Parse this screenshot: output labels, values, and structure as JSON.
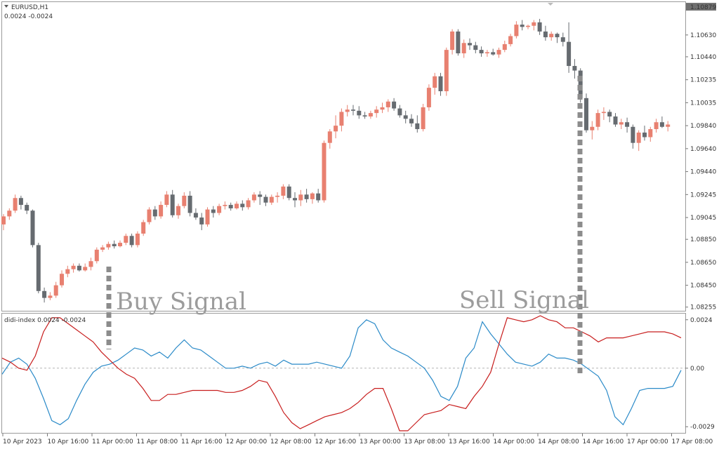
{
  "header": {
    "symbol_label": "EURUSD,H1",
    "indicator_values": "0.0024   -0.0024"
  },
  "indicator": {
    "label": "didi-index 0.0024 -0.0024"
  },
  "signals": {
    "buy": "Buy Signal",
    "sell": "Sell Signal"
  },
  "colors": {
    "bull": "#e88070",
    "bear": "#666b70",
    "fast_line": "#2a8ac8",
    "slow_line": "#c81e1e",
    "signal_marker": "#8c8c8c",
    "current_price_bg": "#707070"
  },
  "chart_data": [
    {
      "type": "candlestick",
      "symbol": "EURUSD",
      "timeframe": "H1",
      "current_price": "1.10879",
      "ylim": [
        1.0824,
        1.1091
      ],
      "y_ticks": [
        {
          "value": 1.10879,
          "label": "1.10879"
        },
        {
          "value": 1.1063,
          "label": "1.10630"
        },
        {
          "value": 1.1044,
          "label": "1.10440"
        },
        {
          "value": 1.1024,
          "label": "1.10235"
        },
        {
          "value": 1.1004,
          "label": "1.10035"
        },
        {
          "value": 1.0984,
          "label": "1.09840"
        },
        {
          "value": 1.0964,
          "label": "1.09640"
        },
        {
          "value": 1.0944,
          "label": "1.09440"
        },
        {
          "value": 1.0924,
          "label": "1.09245"
        },
        {
          "value": 1.0904,
          "label": "1.09045"
        },
        {
          "value": 1.0885,
          "label": "1.08850"
        },
        {
          "value": 1.0865,
          "label": "1.08650"
        },
        {
          "value": 1.0845,
          "label": "1.08450"
        },
        {
          "value": 1.0826,
          "label": "1.08255"
        }
      ],
      "x_labels": [
        "10 Apr 2023",
        "10 Apr 16:00",
        "11 Apr 00:00",
        "11 Apr 08:00",
        "11 Apr 16:00",
        "12 Apr 00:00",
        "12 Apr 08:00",
        "12 Apr 16:00",
        "13 Apr 00:00",
        "13 Apr 08:00",
        "13 Apr 16:00",
        "14 Apr 00:00",
        "14 Apr 08:00",
        "14 Apr 16:00",
        "17 Apr 00:00",
        "17 Apr 08:00"
      ],
      "candles": [
        [
          1.0898,
          1.0907,
          1.0893,
          1.0905
        ],
        [
          1.0905,
          1.0912,
          1.0902,
          1.091
        ],
        [
          1.091,
          1.0924,
          1.0908,
          1.0921
        ],
        [
          1.0921,
          1.0923,
          1.0911,
          1.0915
        ],
        [
          1.0915,
          1.0917,
          1.0907,
          1.091
        ],
        [
          1.091,
          1.0911,
          1.0878,
          1.088
        ],
        [
          1.088,
          1.0882,
          1.0838,
          1.084
        ],
        [
          1.084,
          1.0843,
          1.083,
          1.0834
        ],
        [
          1.0834,
          1.0839,
          1.0832,
          1.0836
        ],
        [
          1.0836,
          1.0848,
          1.0834,
          1.0845
        ],
        [
          1.0845,
          1.0858,
          1.0843,
          1.0855
        ],
        [
          1.0855,
          1.0862,
          1.0852,
          1.0859
        ],
        [
          1.0859,
          1.0864,
          1.0856,
          1.0862
        ],
        [
          1.0862,
          1.0864,
          1.0857,
          1.0858
        ],
        [
          1.0858,
          1.0864,
          1.0857,
          1.0861
        ],
        [
          1.0861,
          1.0869,
          1.0858,
          1.0866
        ],
        [
          1.0866,
          1.0878,
          1.0864,
          1.0876
        ],
        [
          1.0876,
          1.088,
          1.0874,
          1.0878
        ],
        [
          1.0878,
          1.0883,
          1.0876,
          1.0881
        ],
        [
          1.0881,
          1.0884,
          1.0877,
          1.0879
        ],
        [
          1.0879,
          1.0884,
          1.0878,
          1.0882
        ],
        [
          1.0882,
          1.089,
          1.088,
          1.0888
        ],
        [
          1.0888,
          1.089,
          1.0878,
          1.088
        ],
        [
          1.088,
          1.0892,
          1.0878,
          1.089
        ],
        [
          1.089,
          1.0902,
          1.0888,
          1.09
        ],
        [
          1.09,
          1.0913,
          1.0898,
          1.0911
        ],
        [
          1.0911,
          1.0914,
          1.0902,
          1.0905
        ],
        [
          1.0905,
          1.0918,
          1.0903,
          1.0915
        ],
        [
          1.0915,
          1.0927,
          1.0913,
          1.0924
        ],
        [
          1.0924,
          1.0928,
          1.0904,
          1.0906
        ],
        [
          1.0906,
          1.0916,
          1.0903,
          1.0914
        ],
        [
          1.0914,
          1.0926,
          1.0912,
          1.0923
        ],
        [
          1.0923,
          1.0927,
          1.0905,
          1.0908
        ],
        [
          1.0908,
          1.0912,
          1.0902,
          1.0904
        ],
        [
          1.0904,
          1.0908,
          1.0893,
          1.0898
        ],
        [
          1.0898,
          1.0913,
          1.0896,
          1.0911
        ],
        [
          1.0911,
          1.0914,
          1.0904,
          1.0908
        ],
        [
          1.0908,
          1.0916,
          1.0906,
          1.0914
        ],
        [
          1.0914,
          1.0918,
          1.0911,
          1.0915
        ],
        [
          1.0915,
          1.0917,
          1.091,
          1.0912
        ],
        [
          1.0912,
          1.0918,
          1.0911,
          1.0916
        ],
        [
          1.0916,
          1.0919,
          1.091,
          1.0913
        ],
        [
          1.0913,
          1.0921,
          1.0911,
          1.0919
        ],
        [
          1.0919,
          1.0926,
          1.0917,
          1.0924
        ],
        [
          1.0924,
          1.0927,
          1.0915,
          1.0922
        ],
        [
          1.0922,
          1.0924,
          1.0914,
          1.0917
        ],
        [
          1.0917,
          1.0924,
          1.0915,
          1.0922
        ],
        [
          1.0922,
          1.0926,
          1.0917,
          1.0923
        ],
        [
          1.0923,
          1.0933,
          1.092,
          1.0931
        ],
        [
          1.0931,
          1.0933,
          1.0919,
          1.0921
        ],
        [
          1.0921,
          1.0926,
          1.0913,
          1.0919
        ],
        [
          1.0919,
          1.0928,
          1.0914,
          1.0924
        ],
        [
          1.0924,
          1.0929,
          1.0917,
          1.092
        ],
        [
          1.092,
          1.0926,
          1.0916,
          1.0925
        ],
        [
          1.0925,
          1.0929,
          1.0917,
          1.0919
        ],
        [
          1.0919,
          1.0971,
          1.0917,
          1.0969
        ],
        [
          1.0969,
          1.0981,
          1.0964,
          1.0979
        ],
        [
          1.0979,
          1.0993,
          1.0973,
          1.0984
        ],
        [
          1.0984,
          1.0999,
          1.0979,
          1.0996
        ],
        [
          1.0996,
          1.1002,
          1.0992,
          1.0998
        ],
        [
          1.0998,
          1.1002,
          1.0993,
          1.0997
        ],
        [
          1.0997,
          1.1001,
          1.099,
          1.0993
        ],
        [
          1.0993,
          1.0996,
          1.099,
          1.0992
        ],
        [
          1.0992,
          1.0997,
          1.099,
          1.0995
        ],
        [
          1.0995,
          1.1001,
          1.0991,
          1.0998
        ],
        [
          1.0998,
          1.1004,
          1.0995,
          1.1
        ],
        [
          1.1,
          1.1007,
          1.0996,
          1.1005
        ],
        [
          1.1005,
          1.1008,
          1.0997,
          1.0999
        ],
        [
          1.0999,
          1.1002,
          1.0991,
          1.0993
        ],
        [
          1.0993,
          1.0997,
          1.0986,
          1.099
        ],
        [
          1.099,
          1.0994,
          1.0983,
          1.0986
        ],
        [
          1.0986,
          1.0993,
          1.0978,
          1.0981
        ],
        [
          1.0981,
          1.1003,
          1.0979,
          1.1
        ],
        [
          1.1,
          1.102,
          1.0997,
          1.1017
        ],
        [
          1.1017,
          1.103,
          1.1011,
          1.1027
        ],
        [
          1.1027,
          1.103,
          1.101,
          1.1014
        ],
        [
          1.1014,
          1.1052,
          1.101,
          1.105
        ],
        [
          1.105,
          1.1068,
          1.1046,
          1.1066
        ],
        [
          1.1066,
          1.1068,
          1.1045,
          1.1047
        ],
        [
          1.1047,
          1.1059,
          1.1043,
          1.1056
        ],
        [
          1.1056,
          1.106,
          1.105,
          1.1054
        ],
        [
          1.1054,
          1.1057,
          1.1047,
          1.105
        ],
        [
          1.105,
          1.1053,
          1.1044,
          1.1047
        ],
        [
          1.1047,
          1.105,
          1.1044,
          1.1048
        ],
        [
          1.1048,
          1.1051,
          1.1045,
          1.1046
        ],
        [
          1.1046,
          1.1052,
          1.1043,
          1.105
        ],
        [
          1.105,
          1.1058,
          1.1048,
          1.1055
        ],
        [
          1.1055,
          1.1064,
          1.1053,
          1.1062
        ],
        [
          1.1062,
          1.1075,
          1.106,
          1.1072
        ],
        [
          1.1072,
          1.1076,
          1.1067,
          1.107
        ],
        [
          1.107,
          1.1072,
          1.1068,
          1.1071
        ],
        [
          1.1071,
          1.1076,
          1.1067,
          1.1074
        ],
        [
          1.1074,
          1.1077,
          1.1063,
          1.1066
        ],
        [
          1.1066,
          1.1071,
          1.1058,
          1.1061
        ],
        [
          1.1061,
          1.1066,
          1.1058,
          1.1064
        ],
        [
          1.1064,
          1.1065,
          1.1056,
          1.1061
        ],
        [
          1.1061,
          1.1065,
          1.1053,
          1.1057
        ],
        [
          1.1057,
          1.1074,
          1.103,
          1.1036
        ],
        [
          1.1036,
          1.1042,
          1.1025,
          1.1032
        ],
        [
          1.1032,
          1.1034,
          1.1004,
          1.1008
        ],
        [
          1.1008,
          1.1012,
          1.0978,
          1.098
        ],
        [
          1.098,
          1.0988,
          1.0972,
          1.0983
        ],
        [
          1.0983,
          1.0998,
          1.098,
          1.0995
        ],
        [
          1.0995,
          1.1,
          1.0989,
          1.0996
        ],
        [
          1.0996,
          1.0998,
          1.0987,
          1.0992
        ],
        [
          1.0992,
          1.0995,
          1.0983,
          1.0985
        ],
        [
          1.0985,
          1.099,
          1.0981,
          1.0987
        ],
        [
          1.0987,
          1.0991,
          1.0978,
          1.0983
        ],
        [
          1.0983,
          1.0985,
          1.0964,
          1.0969
        ],
        [
          1.0969,
          1.098,
          1.0962,
          1.0978
        ],
        [
          1.0978,
          1.0984,
          1.0971,
          1.0974
        ],
        [
          1.0974,
          1.0983,
          1.097,
          1.0981
        ],
        [
          1.0981,
          1.099,
          1.0978,
          1.0987
        ],
        [
          1.0987,
          1.0992,
          1.0982,
          1.0983
        ],
        [
          1.0983,
          1.0988,
          1.0979,
          1.0985
        ]
      ],
      "bar_open_high_low_close_order": [
        "open",
        "high",
        "low",
        "close"
      ]
    },
    {
      "type": "line",
      "name_label": "didi-index",
      "ylim": [
        -0.0031,
        0.0026
      ],
      "y_ticks": [
        {
          "value": 0.0024,
          "label": "0.0024"
        },
        {
          "value": 0.0,
          "label": "0.00"
        },
        {
          "value": -0.0029,
          "label": "-0.0029"
        }
      ],
      "zero_line": 0.0,
      "series": [
        {
          "color": "#2a8ac8",
          "values": [
            -0.0003,
            0.0003,
            0.0005,
            0.0002,
            -0.0005,
            -0.0015,
            -0.0026,
            -0.0028,
            -0.0025,
            -0.0016,
            -0.0008,
            -0.0002,
            0.0001,
            0.0002,
            0.0004,
            0.0007,
            0.001,
            0.0009,
            0.0006,
            0.0008,
            0.0005,
            0.001,
            0.0014,
            0.001,
            0.0009,
            0.0006,
            0.0003,
            0.0,
            0.0,
            0.0001,
            0.0,
            0.0002,
            0.0003,
            0.0001,
            0.0004,
            0.0002,
            0.0002,
            0.0002,
            0.0003,
            0.0002,
            0.0001,
            0.0,
            0.0006,
            0.002,
            0.0024,
            0.0022,
            0.0014,
            0.001,
            0.0008,
            0.0006,
            0.0003,
            0.0,
            -0.0006,
            -0.0014,
            -0.0016,
            -0.0009,
            0.0005,
            0.001,
            0.0023,
            0.0017,
            0.0012,
            0.0007,
            0.0003,
            0.0002,
            0.0001,
            0.0003,
            0.0007,
            0.0005,
            0.0005,
            0.0004,
            0.0002,
            -0.0001,
            -0.0004,
            -0.0011,
            -0.0024,
            -0.0028,
            -0.002,
            -0.0011,
            -0.001,
            -0.001,
            -0.001,
            -0.0009,
            -0.0001
          ]
        },
        {
          "color": "#c81e1e",
          "values": [
            0.0005,
            0.0003,
            0.0,
            -0.0001,
            0.0006,
            0.0018,
            0.0025,
            0.0025,
            0.0022,
            0.0019,
            0.0016,
            0.0013,
            0.0008,
            0.0004,
            0.0,
            -0.0003,
            -0.0005,
            -0.001,
            -0.0016,
            -0.0016,
            -0.0013,
            -0.0013,
            -0.0012,
            -0.0011,
            -0.0011,
            -0.0011,
            -0.0011,
            -0.0012,
            -0.0012,
            -0.0011,
            -0.0009,
            -0.0006,
            -0.0007,
            -0.0014,
            -0.0022,
            -0.0027,
            -0.003,
            -0.0028,
            -0.0026,
            -0.0024,
            -0.0023,
            -0.0022,
            -0.002,
            -0.0017,
            -0.0013,
            -0.001,
            -0.001,
            -0.002,
            -0.0031,
            -0.0031,
            -0.0027,
            -0.0023,
            -0.0022,
            -0.0021,
            -0.0018,
            -0.0019,
            -0.002,
            -0.0014,
            -0.0009,
            -0.0002,
            0.0012,
            0.0025,
            0.0024,
            0.0023,
            0.0024,
            0.0026,
            0.0024,
            0.0023,
            0.002,
            0.002,
            0.0018,
            0.0016,
            0.0013,
            0.0015,
            0.0015,
            0.0015,
            0.0016,
            0.0017,
            0.0018,
            0.0018,
            0.0018,
            0.0017,
            0.0015
          ]
        }
      ]
    }
  ]
}
